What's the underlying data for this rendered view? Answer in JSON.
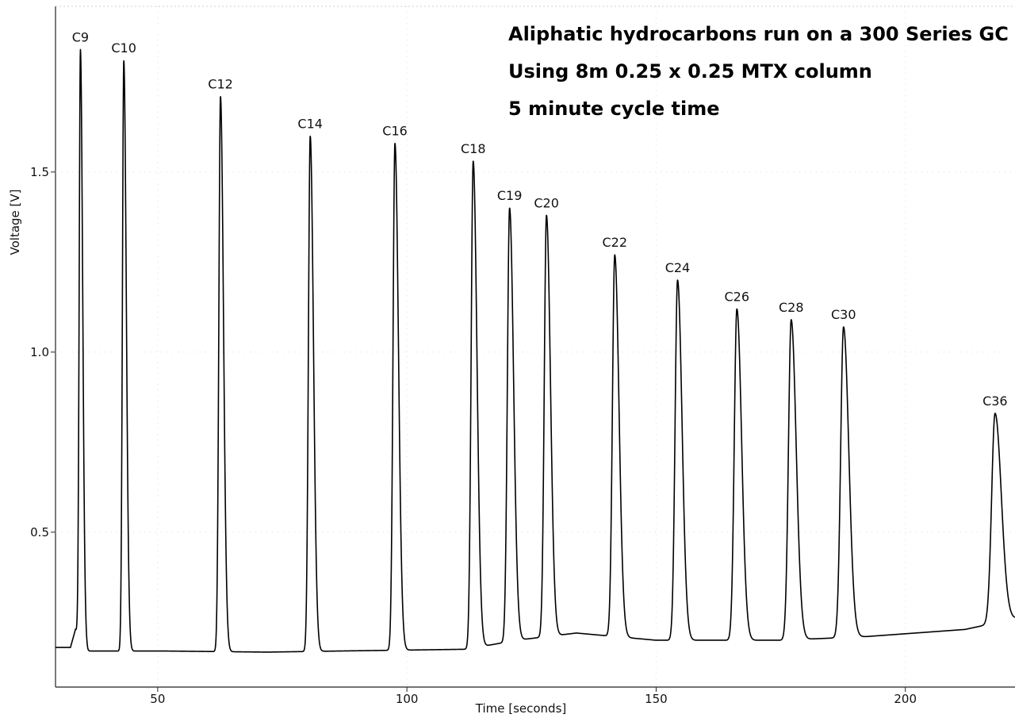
{
  "chart_data": {
    "type": "line",
    "title_lines": [
      "Aliphatic hydrocarbons run on a 300 Series GC",
      "Using 8m 0.25 x 0.25 MTX column",
      "5 minute cycle time"
    ],
    "xlabel": "Time [seconds]",
    "ylabel": "Voltage [V]",
    "xlim": [
      29.5,
      222
    ],
    "ylim": [
      0.07,
      1.96
    ],
    "xticks": [
      50,
      100,
      150,
      200
    ],
    "yticks": [
      0.5,
      1.0,
      1.5
    ],
    "xtick_labels": [
      "50",
      "100",
      "150",
      "200"
    ],
    "ytick_labels": [
      "0.5",
      "1.0",
      "1.5"
    ],
    "grid": false,
    "baseline": [
      {
        "x": 29.5,
        "y": 0.18
      },
      {
        "x": 32.5,
        "y": 0.18
      },
      {
        "x": 33.5,
        "y": 0.23
      },
      {
        "x": 36,
        "y": 0.17
      },
      {
        "x": 52,
        "y": 0.17
      },
      {
        "x": 72,
        "y": 0.167
      },
      {
        "x": 86,
        "y": 0.17
      },
      {
        "x": 112,
        "y": 0.175
      },
      {
        "x": 122,
        "y": 0.2
      },
      {
        "x": 134,
        "y": 0.22
      },
      {
        "x": 150,
        "y": 0.2
      },
      {
        "x": 175,
        "y": 0.2
      },
      {
        "x": 192,
        "y": 0.21
      },
      {
        "x": 212,
        "y": 0.23
      },
      {
        "x": 222,
        "y": 0.26
      }
    ],
    "peaks": [
      {
        "label": "C9",
        "x": 34.5,
        "y": 1.84,
        "width": 0.45
      },
      {
        "label": "C10",
        "x": 43.2,
        "y": 1.81,
        "width": 0.5
      },
      {
        "label": "C12",
        "x": 62.6,
        "y": 1.71,
        "width": 0.6
      },
      {
        "label": "C14",
        "x": 80.6,
        "y": 1.6,
        "width": 0.65
      },
      {
        "label": "C16",
        "x": 97.6,
        "y": 1.58,
        "width": 0.7
      },
      {
        "label": "C18",
        "x": 113.3,
        "y": 1.53,
        "width": 0.75
      },
      {
        "label": "C19",
        "x": 120.6,
        "y": 1.4,
        "width": 0.8
      },
      {
        "label": "C20",
        "x": 128.0,
        "y": 1.38,
        "width": 0.8
      },
      {
        "label": "C22",
        "x": 141.7,
        "y": 1.27,
        "width": 0.85
      },
      {
        "label": "C24",
        "x": 154.3,
        "y": 1.2,
        "width": 0.9
      },
      {
        "label": "C26",
        "x": 166.2,
        "y": 1.12,
        "width": 0.95
      },
      {
        "label": "C28",
        "x": 177.1,
        "y": 1.09,
        "width": 1.0
      },
      {
        "label": "C30",
        "x": 187.6,
        "y": 1.07,
        "width": 1.05
      },
      {
        "label": "C36",
        "x": 218.0,
        "y": 0.83,
        "width": 1.25
      }
    ],
    "line_color": "#000000"
  }
}
